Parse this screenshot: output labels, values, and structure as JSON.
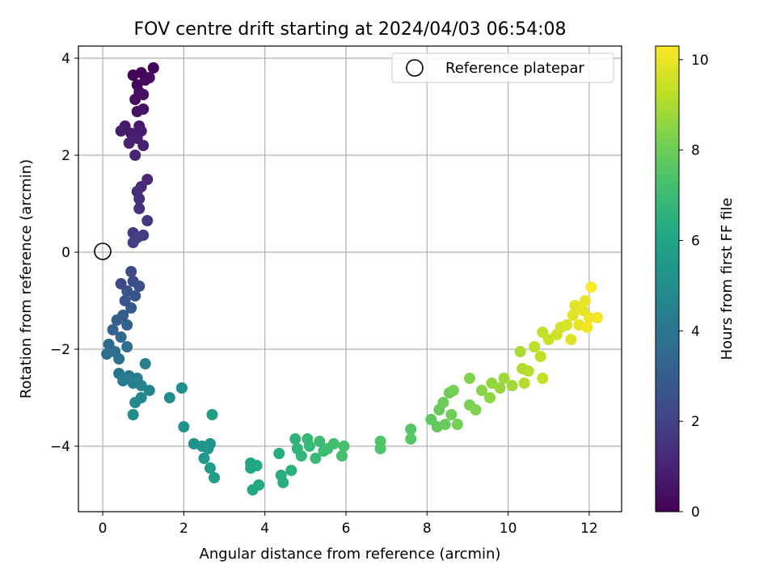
{
  "chart_data": {
    "type": "scatter",
    "title": "FOV centre drift starting at 2024/04/03 06:54:08",
    "xlabel": "Angular distance from reference (arcmin)",
    "ylabel": "Rotation from reference (arcmin)",
    "xlim": [
      -0.6,
      12.8
    ],
    "ylim": [
      -5.35,
      4.25
    ],
    "xticks": [
      0,
      2,
      4,
      6,
      8,
      10,
      12
    ],
    "yticks": [
      -4,
      -2,
      0,
      2,
      4
    ],
    "grid": true,
    "legend": {
      "placement": "top-right",
      "entries": [
        "Reference platepar"
      ]
    },
    "colorbar": {
      "label": "Hours from first FF file",
      "range": [
        0,
        10.3
      ],
      "ticks": [
        0,
        2,
        4,
        6,
        8,
        10
      ],
      "colormap": "viridis"
    },
    "reference_point": {
      "x": 0,
      "y": 0
    },
    "series": [
      {
        "values": [
          [
            0.75,
            3.65,
            0.05
          ],
          [
            0.95,
            3.7,
            0.1
          ],
          [
            1.25,
            3.8,
            0.15
          ],
          [
            1.05,
            3.55,
            0.2
          ],
          [
            0.85,
            3.45,
            0.25
          ],
          [
            1.15,
            3.6,
            0.3
          ],
          [
            0.9,
            3.3,
            0.35
          ],
          [
            1.0,
            3.25,
            0.4
          ],
          [
            0.8,
            3.15,
            0.45
          ],
          [
            0.85,
            2.9,
            0.5
          ],
          [
            1.0,
            2.95,
            0.55
          ],
          [
            0.9,
            2.6,
            0.65
          ],
          [
            0.55,
            2.6,
            0.7
          ],
          [
            0.7,
            2.45,
            0.75
          ],
          [
            0.95,
            2.5,
            0.8
          ],
          [
            0.45,
            2.5,
            0.85
          ],
          [
            0.85,
            2.35,
            0.9
          ],
          [
            0.65,
            2.25,
            0.95
          ],
          [
            1.0,
            2.2,
            1.0
          ],
          [
            0.8,
            2.0,
            1.1
          ],
          [
            1.1,
            1.5,
            1.2
          ],
          [
            0.95,
            1.35,
            1.3
          ],
          [
            0.85,
            1.25,
            1.35
          ],
          [
            0.9,
            1.1,
            1.4
          ],
          [
            0.9,
            0.9,
            1.45
          ],
          [
            1.1,
            0.65,
            1.6
          ],
          [
            0.75,
            0.4,
            1.75
          ],
          [
            1.0,
            0.35,
            1.85
          ],
          [
            0.85,
            0.3,
            1.9
          ],
          [
            0.75,
            0.2,
            2.0
          ],
          [
            0.7,
            -0.4,
            2.2
          ],
          [
            0.45,
            -0.65,
            2.3
          ],
          [
            0.75,
            -0.6,
            2.4
          ],
          [
            0.9,
            -0.7,
            2.5
          ],
          [
            0.6,
            -0.8,
            2.55
          ],
          [
            0.8,
            -0.9,
            2.65
          ],
          [
            0.55,
            -1.0,
            2.75
          ],
          [
            0.7,
            -1.15,
            2.85
          ],
          [
            0.5,
            -1.3,
            2.95
          ],
          [
            0.35,
            -1.4,
            3.05
          ],
          [
            0.6,
            -1.5,
            3.15
          ],
          [
            0.25,
            -1.6,
            3.3
          ],
          [
            0.45,
            -1.75,
            3.4
          ],
          [
            0.15,
            -1.9,
            3.55
          ],
          [
            0.3,
            -2.05,
            3.65
          ],
          [
            0.1,
            -2.1,
            3.7
          ],
          [
            0.6,
            -1.95,
            3.75
          ],
          [
            0.4,
            -2.2,
            3.85
          ],
          [
            0.4,
            -2.5,
            4.0
          ],
          [
            0.65,
            -2.55,
            4.1
          ],
          [
            0.5,
            -2.65,
            4.2
          ],
          [
            0.85,
            -2.6,
            4.35
          ],
          [
            1.05,
            -2.3,
            4.45
          ],
          [
            0.75,
            -2.7,
            4.5
          ],
          [
            0.95,
            -2.75,
            4.55
          ],
          [
            1.15,
            -2.85,
            4.65
          ],
          [
            0.95,
            -3.0,
            4.75
          ],
          [
            0.8,
            -3.1,
            4.8
          ],
          [
            0.75,
            -3.35,
            4.9
          ],
          [
            1.65,
            -3.0,
            5.0
          ],
          [
            1.95,
            -2.8,
            5.05
          ],
          [
            2.0,
            -3.6,
            5.15
          ],
          [
            2.25,
            -3.95,
            5.2
          ],
          [
            2.45,
            -4.0,
            5.3
          ],
          [
            2.65,
            -3.95,
            5.35
          ],
          [
            2.6,
            -4.05,
            5.45
          ],
          [
            2.5,
            -4.25,
            5.55
          ],
          [
            2.65,
            -4.45,
            5.65
          ],
          [
            2.75,
            -4.65,
            5.7
          ],
          [
            2.7,
            -3.35,
            5.75
          ],
          [
            3.65,
            -4.35,
            6.05
          ],
          [
            3.65,
            -4.45,
            6.1
          ],
          [
            3.8,
            -4.4,
            6.15
          ],
          [
            3.7,
            -4.9,
            6.2
          ],
          [
            3.85,
            -4.8,
            6.25
          ],
          [
            4.35,
            -4.15,
            6.35
          ],
          [
            4.4,
            -4.6,
            6.4
          ],
          [
            4.45,
            -4.75,
            6.45
          ],
          [
            4.65,
            -4.5,
            6.5
          ],
          [
            4.75,
            -3.85,
            6.6
          ],
          [
            4.8,
            -4.05,
            6.7
          ],
          [
            4.9,
            -4.2,
            6.75
          ],
          [
            5.05,
            -3.85,
            6.85
          ],
          [
            5.1,
            -4.0,
            6.9
          ],
          [
            5.25,
            -4.25,
            6.95
          ],
          [
            5.35,
            -3.9,
            7.0
          ],
          [
            5.45,
            -4.1,
            7.05
          ],
          [
            5.55,
            -4.05,
            7.1
          ],
          [
            5.7,
            -3.95,
            7.15
          ],
          [
            5.9,
            -4.2,
            7.2
          ],
          [
            5.95,
            -4.0,
            7.25
          ],
          [
            6.85,
            -3.9,
            7.4
          ],
          [
            6.85,
            -4.05,
            7.45
          ],
          [
            7.6,
            -3.65,
            7.55
          ],
          [
            7.6,
            -3.85,
            7.6
          ],
          [
            8.1,
            -3.45,
            7.75
          ],
          [
            8.25,
            -3.6,
            7.8
          ],
          [
            8.3,
            -3.25,
            7.85
          ],
          [
            8.45,
            -3.55,
            7.9
          ],
          [
            8.4,
            -3.1,
            7.95
          ],
          [
            8.55,
            -2.9,
            8.0
          ],
          [
            8.6,
            -3.35,
            8.05
          ],
          [
            8.65,
            -2.85,
            8.1
          ],
          [
            8.75,
            -3.55,
            8.15
          ],
          [
            9.05,
            -3.15,
            8.25
          ],
          [
            9.05,
            -2.6,
            8.3
          ],
          [
            9.2,
            -3.25,
            8.35
          ],
          [
            9.35,
            -2.85,
            8.45
          ],
          [
            9.55,
            -3.0,
            8.55
          ],
          [
            9.6,
            -2.7,
            8.6
          ],
          [
            9.8,
            -2.8,
            8.7
          ],
          [
            9.9,
            -2.6,
            8.8
          ],
          [
            10.1,
            -2.75,
            8.85
          ],
          [
            10.3,
            -2.05,
            9.0
          ],
          [
            10.35,
            -2.4,
            9.05
          ],
          [
            10.4,
            -2.7,
            9.1
          ],
          [
            10.5,
            -2.45,
            9.15
          ],
          [
            10.65,
            -1.95,
            9.25
          ],
          [
            10.8,
            -2.15,
            9.3
          ],
          [
            10.85,
            -1.65,
            9.35
          ],
          [
            10.85,
            -2.6,
            9.4
          ],
          [
            11.0,
            -1.8,
            9.45
          ],
          [
            11.2,
            -1.7,
            9.55
          ],
          [
            11.3,
            -1.55,
            9.6
          ],
          [
            11.45,
            -1.5,
            9.7
          ],
          [
            11.55,
            -1.8,
            9.75
          ],
          [
            11.6,
            -1.3,
            9.8
          ],
          [
            11.65,
            -1.1,
            9.85
          ],
          [
            11.75,
            -1.5,
            9.9
          ],
          [
            11.85,
            -1.2,
            9.95
          ],
          [
            11.9,
            -1.0,
            10.0
          ],
          [
            12.0,
            -1.35,
            10.05
          ],
          [
            11.95,
            -1.55,
            10.1
          ],
          [
            12.2,
            -1.35,
            10.15
          ],
          [
            12.05,
            -0.72,
            10.25
          ]
        ]
      }
    ]
  }
}
